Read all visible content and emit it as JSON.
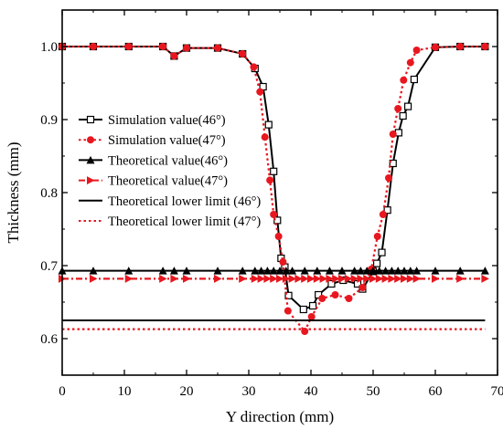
{
  "chart_data": {
    "type": "line",
    "xlabel": "Y direction (mm)",
    "ylabel": "Thickness (mm)",
    "xlim": [
      0,
      70
    ],
    "ylim": [
      0.55,
      1.05
    ],
    "xticks": [
      0,
      10,
      20,
      30,
      40,
      50,
      60,
      70
    ],
    "yticks": [
      0.6,
      0.7,
      0.8,
      0.9,
      1.0
    ],
    "grid": false,
    "legend_position": "center-left",
    "series": [
      {
        "name": "Simulation value(46°)",
        "color": "#000000",
        "line": "solid",
        "marker": "hollow-square",
        "x": [
          0,
          5,
          10.7,
          16.2,
          18,
          20,
          25,
          29,
          31,
          32.3,
          33.2,
          34.0,
          34.6,
          35.2,
          35.8,
          36.4,
          38.8,
          40.3,
          41.2,
          43.3,
          45.2,
          47.5,
          48.3,
          50.0,
          50.6,
          51.4,
          52.3,
          53.2,
          54.1,
          54.8,
          55.6,
          56.6,
          60,
          64,
          68
        ],
        "y": [
          1.0,
          1.0,
          1.0,
          1.0,
          0.987,
          0.998,
          0.998,
          0.99,
          0.97,
          0.945,
          0.893,
          0.829,
          0.762,
          0.71,
          0.698,
          0.659,
          0.64,
          0.645,
          0.66,
          0.675,
          0.68,
          0.675,
          0.668,
          0.692,
          0.703,
          0.718,
          0.776,
          0.84,
          0.882,
          0.905,
          0.918,
          0.955,
          0.999,
          1.0,
          1.0
        ]
      },
      {
        "name": "Simulation value(47°)",
        "color": "#e8171f",
        "line": "dotted",
        "marker": "filled-circle",
        "x": [
          0,
          5,
          10.7,
          16.2,
          18,
          20,
          25,
          29,
          30.8,
          31.8,
          32.6,
          33.4,
          34.0,
          34.8,
          35.5,
          36.3,
          39.0,
          40.1,
          41.8,
          43.9,
          46.1,
          48.3,
          49.7,
          50.7,
          51.6,
          52.5,
          53.2,
          54.0,
          54.9,
          56.0,
          57.0,
          60,
          64,
          68
        ],
        "y": [
          1.0,
          1.0,
          1.0,
          1.0,
          0.987,
          0.998,
          0.998,
          0.99,
          0.972,
          0.938,
          0.876,
          0.817,
          0.77,
          0.74,
          0.705,
          0.638,
          0.61,
          0.63,
          0.655,
          0.66,
          0.655,
          0.67,
          0.695,
          0.74,
          0.77,
          0.82,
          0.88,
          0.915,
          0.954,
          0.978,
          0.995,
          0.999,
          1.0,
          1.0
        ]
      },
      {
        "name": "Theoretical value(46°)",
        "color": "#000000",
        "line": "solid",
        "marker": "filled-triangle-up",
        "x": [
          0,
          5,
          10.7,
          16.2,
          18,
          20,
          25,
          29,
          31,
          32.0,
          33.0,
          34.0,
          35.0,
          36.0,
          37.0,
          39.0,
          41.0,
          43.0,
          45.0,
          47.0,
          48.0,
          49.0,
          50.0,
          51.0,
          52.0,
          53.0,
          54.0,
          55.0,
          56.0,
          57.0,
          60,
          64,
          68
        ],
        "y": [
          0.693,
          0.693,
          0.693,
          0.693,
          0.693,
          0.693,
          0.693,
          0.693,
          0.693,
          0.693,
          0.693,
          0.693,
          0.693,
          0.693,
          0.693,
          0.693,
          0.693,
          0.693,
          0.693,
          0.693,
          0.693,
          0.693,
          0.693,
          0.693,
          0.693,
          0.693,
          0.693,
          0.693,
          0.693,
          0.693,
          0.693,
          0.693,
          0.693
        ]
      },
      {
        "name": "Theoretical value(47°)",
        "color": "#e8171f",
        "line": "dash-dot",
        "marker": "filled-triangle-right",
        "x": [
          0,
          5,
          10.7,
          16.2,
          18,
          20,
          25,
          29,
          31,
          32.0,
          33.0,
          34.0,
          35.0,
          36.0,
          37.0,
          38.0,
          39.0,
          40.0,
          41.0,
          42.0,
          43.0,
          44.0,
          45.0,
          46.0,
          47.0,
          48.0,
          49.0,
          50.0,
          51.0,
          52.0,
          53.0,
          54.0,
          55.0,
          56.0,
          57.0,
          60,
          64,
          68
        ],
        "y": [
          0.682,
          0.682,
          0.682,
          0.682,
          0.682,
          0.682,
          0.682,
          0.682,
          0.682,
          0.682,
          0.682,
          0.682,
          0.682,
          0.682,
          0.682,
          0.682,
          0.682,
          0.682,
          0.682,
          0.682,
          0.682,
          0.682,
          0.682,
          0.682,
          0.682,
          0.682,
          0.682,
          0.682,
          0.682,
          0.682,
          0.682,
          0.682,
          0.682,
          0.682,
          0.682,
          0.682,
          0.682,
          0.682
        ]
      },
      {
        "name": "Theoretical lower limit (46°)",
        "color": "#000000",
        "line": "solid",
        "marker": "none",
        "x": [
          0,
          68
        ],
        "y": [
          0.625,
          0.625
        ]
      },
      {
        "name": "Theoretical lower limit (47°)",
        "color": "#e8171f",
        "line": "dotted",
        "marker": "none",
        "x": [
          0,
          68
        ],
        "y": [
          0.613,
          0.613
        ]
      }
    ]
  }
}
